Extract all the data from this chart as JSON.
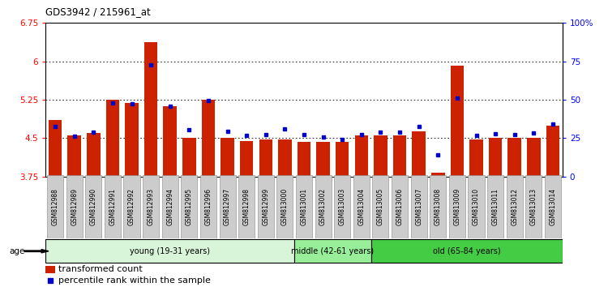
{
  "title": "GDS3942 / 215961_at",
  "samples": [
    "GSM812988",
    "GSM812989",
    "GSM812990",
    "GSM812991",
    "GSM812992",
    "GSM812993",
    "GSM812994",
    "GSM812995",
    "GSM812996",
    "GSM812997",
    "GSM812998",
    "GSM812999",
    "GSM813000",
    "GSM813001",
    "GSM813002",
    "GSM813003",
    "GSM813004",
    "GSM813005",
    "GSM813006",
    "GSM813007",
    "GSM813008",
    "GSM813009",
    "GSM813010",
    "GSM813011",
    "GSM813012",
    "GSM813013",
    "GSM813014"
  ],
  "bar_values": [
    4.85,
    4.55,
    4.6,
    5.25,
    5.18,
    6.38,
    5.12,
    4.5,
    5.25,
    4.5,
    4.45,
    4.47,
    4.47,
    4.42,
    4.43,
    4.43,
    4.55,
    4.55,
    4.55,
    4.63,
    3.82,
    5.92,
    4.48,
    4.5,
    4.5,
    4.5,
    4.75
  ],
  "percentile_values": [
    4.72,
    4.53,
    4.62,
    5.18,
    5.17,
    5.93,
    5.12,
    4.67,
    5.23,
    4.63,
    4.55,
    4.57,
    4.68,
    4.57,
    4.52,
    4.48,
    4.57,
    4.62,
    4.62,
    4.72,
    4.18,
    5.28,
    4.55,
    4.58,
    4.57,
    4.6,
    4.77
  ],
  "bar_color": "#cc2200",
  "dot_color": "#0000cc",
  "ymin": 3.75,
  "ymax": 6.75,
  "yticks": [
    3.75,
    4.5,
    5.25,
    6.0,
    6.75
  ],
  "ytick_labels": [
    "3.75",
    "4.5",
    "5.25",
    "6",
    "6.75"
  ],
  "right_yticks": [
    0,
    25,
    50,
    75,
    100
  ],
  "right_ytick_labels": [
    "0",
    "25",
    "50",
    "75",
    "100%"
  ],
  "groups": [
    {
      "label": "young (19-31 years)",
      "start": 0,
      "end": 13,
      "color": "#d9f5d9"
    },
    {
      "label": "middle (42-61 years)",
      "start": 13,
      "end": 17,
      "color": "#99ee99"
    },
    {
      "label": "old (65-84 years)",
      "start": 17,
      "end": 27,
      "color": "#44cc44"
    }
  ],
  "age_label": "age",
  "legend_bar_label": "transformed count",
  "legend_dot_label": "percentile rank within the sample"
}
